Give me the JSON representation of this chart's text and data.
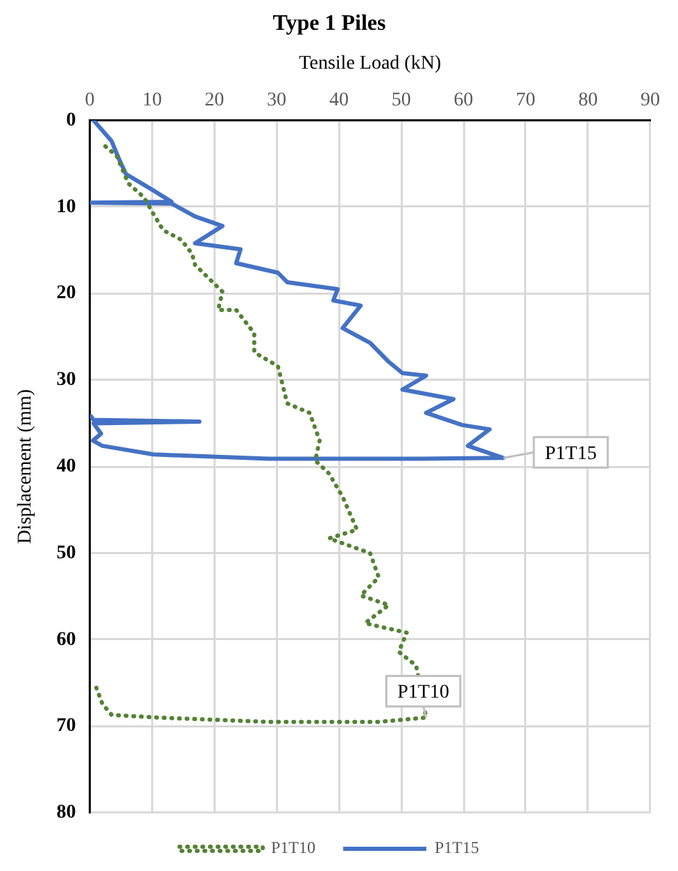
{
  "chart_data": {
    "type": "line",
    "title": "Type 1 Piles",
    "xlabel": "Tensile Load (kN)",
    "ylabel": "Displacement (mm)",
    "xlim": [
      0,
      90
    ],
    "xticks": [
      0,
      10,
      20,
      30,
      40,
      50,
      60,
      70,
      80,
      90
    ],
    "ylim": [
      80,
      0
    ],
    "yticks": [
      0,
      10,
      20,
      30,
      40,
      50,
      60,
      70,
      80
    ],
    "grid": true,
    "legend": "bottom",
    "marker": "none",
    "series": [
      {
        "name": "P1T10",
        "color": "#548235",
        "line_style": "dotted",
        "x": [
          2.5,
          4.3,
          6.2,
          8.7,
          10.2,
          11.8,
          14.7,
          16.4,
          16.9,
          21.3,
          20.6,
          23.5,
          26.4,
          26.4,
          30.2,
          31.7,
          35.3,
          36.9,
          36.2,
          38.4,
          40.6,
          42.9,
          38.4,
          45,
          46.4,
          43.5,
          48,
          44.2,
          50.9,
          49.6,
          52.4,
          54,
          46.4,
          28.7,
          10.9,
          3.5,
          2,
          0.7
        ],
        "values": [
          3,
          4.1,
          7.3,
          8.9,
          10.8,
          12.7,
          13.8,
          15.4,
          16.7,
          19.8,
          21.9,
          21.9,
          24.6,
          26.8,
          28.4,
          32.7,
          33.8,
          37,
          39.3,
          40.8,
          43.5,
          47.3,
          48.3,
          50,
          52.8,
          54.9,
          56,
          58.1,
          59.2,
          61.4,
          63,
          69,
          69.5,
          69.5,
          69,
          68.7,
          67.4,
          64.9
        ]
      },
      {
        "name": "P1T15",
        "color": "#4472c4",
        "line_style": "solid",
        "x": [
          0.6,
          3.5,
          4.7,
          5.8,
          10.2,
          13.1,
          0,
          13.1,
          16.9,
          21.3,
          16.9,
          24.2,
          23.5,
          30.2,
          31.7,
          39.8,
          39.1,
          43.5,
          40.6,
          45,
          48,
          50.2,
          54,
          50.2,
          58.4,
          54,
          59.8,
          64.2,
          60.7,
          66.4,
          53,
          28.7,
          10.2,
          2,
          0.5,
          1.8,
          0.6,
          17.6,
          0.6,
          0.2
        ],
        "values": [
          0,
          2.4,
          4.5,
          6.2,
          8.1,
          9.4,
          9.5,
          9.6,
          11.1,
          12.2,
          14.2,
          14.9,
          16.5,
          17.6,
          18.7,
          19.5,
          20.8,
          21.4,
          24,
          25.7,
          27.9,
          29.2,
          29.5,
          31.1,
          32.2,
          33.8,
          35.2,
          35.7,
          37.6,
          39,
          39.1,
          39.1,
          38.6,
          37.6,
          37,
          36.2,
          35,
          34.8,
          34.6,
          34.2
        ]
      }
    ],
    "annotations": [
      {
        "text": "P1T15",
        "x": 66.4,
        "y": 39
      },
      {
        "text": "P1T10",
        "x": 54,
        "y": 69
      }
    ]
  }
}
